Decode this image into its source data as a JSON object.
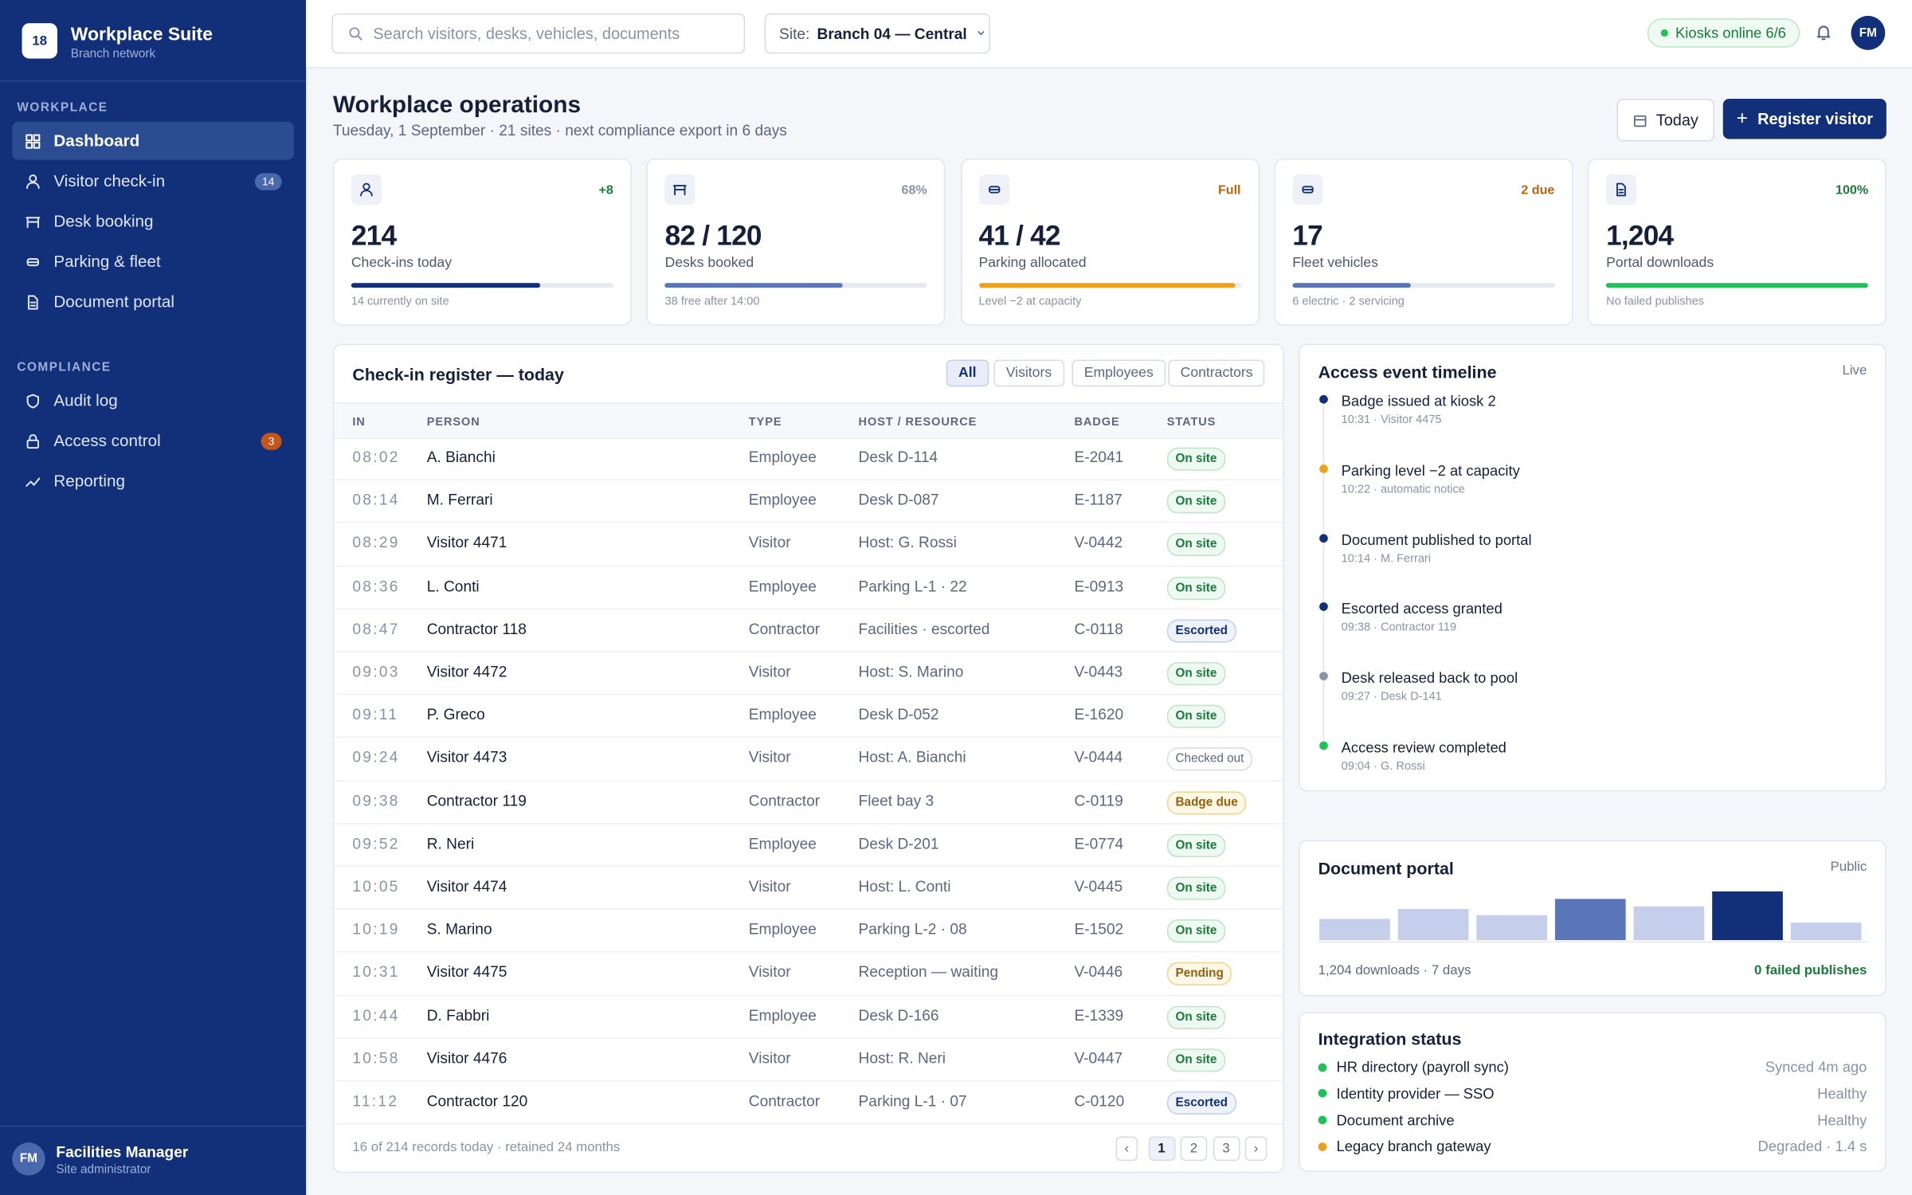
{
  "brand": {
    "logo": "18",
    "name": "Workplace Suite",
    "subtitle": "Branch network"
  },
  "nav": [
    {
      "section": "WORKPLACE",
      "items": [
        {
          "label": "Dashboard",
          "active": true
        },
        {
          "label": "Visitor check-in",
          "badge": 14,
          "badge_color": "blue"
        },
        {
          "label": "Desk booking"
        },
        {
          "label": "Parking & fleet"
        },
        {
          "label": "Document portal"
        }
      ]
    },
    {
      "section": "COMPLIANCE",
      "items": [
        {
          "label": "Audit log"
        },
        {
          "label": "Access control",
          "badge": 3,
          "badge_color": "orange"
        },
        {
          "label": "Reporting"
        }
      ]
    }
  ],
  "user": {
    "initials": "FM",
    "name": "Facilities Manager",
    "role": "Site administrator"
  },
  "topbar": {
    "search_placeholder": "Search visitors, desks, vehicles, documents",
    "site_label": "Site:",
    "site_value": "Branch 04 — Central",
    "kiosks": "Kiosks online 6/6",
    "avatar": "FM"
  },
  "header": {
    "title": "Workplace operations",
    "subtitle": "Tuesday, 1 September · 21 sites · next compliance export in 6 days",
    "button_today": "Today",
    "button_register": "Register visitor"
  },
  "kpis": [
    {
      "value": "214",
      "label": "Check-ins today",
      "badge": "+8",
      "badge_color": "#1c7a3c",
      "progress": 72,
      "bar_color": "#12307a",
      "note": "14 currently on site"
    },
    {
      "value": "82 / 120",
      "label": "Desks booked",
      "badge": "68%",
      "badge_color": "#8a93a6",
      "progress": 68,
      "bar_color": "#5b76b8",
      "note": "38 free after 14:00"
    },
    {
      "value": "41 / 42",
      "label": "Parking allocated",
      "badge": "Full",
      "badge_color": "#b8650a",
      "progress": 98,
      "bar_color": "#f0a11c",
      "note": "Level −2 at capacity"
    },
    {
      "value": "17",
      "label": "Fleet vehicles",
      "badge": "2 due",
      "badge_color": "#b8650a",
      "progress": 45,
      "bar_color": "#5b76b8",
      "note": "6 electric · 2 servicing"
    },
    {
      "value": "1,204",
      "label": "Portal downloads",
      "badge": "100%",
      "badge_color": "#1c7a3c",
      "progress": 100,
      "bar_color": "#22c05a",
      "note": "No failed publishes"
    }
  ],
  "register": {
    "title": "Check-in register — today",
    "filters": [
      "All",
      "Visitors",
      "Employees",
      "Contractors"
    ],
    "active_filter": 0,
    "columns": [
      "IN",
      "PERSON",
      "TYPE",
      "HOST / RESOURCE",
      "BADGE",
      "STATUS"
    ],
    "rows": [
      {
        "in": "08:02",
        "person": "A. Bianchi",
        "type": "Employee",
        "host": "Desk D-114",
        "badge": "E-2041",
        "status": "On site",
        "tone": "green"
      },
      {
        "in": "08:14",
        "person": "M. Ferrari",
        "type": "Employee",
        "host": "Desk D-087",
        "badge": "E-1187",
        "status": "On site",
        "tone": "green"
      },
      {
        "in": "08:29",
        "person": "Visitor 4471",
        "type": "Visitor",
        "host": "Host: G. Rossi",
        "badge": "V-0442",
        "status": "On site",
        "tone": "green"
      },
      {
        "in": "08:36",
        "person": "L. Conti",
        "type": "Employee",
        "host": "Parking L-1 · 22",
        "badge": "E-0913",
        "status": "On site",
        "tone": "green"
      },
      {
        "in": "08:47",
        "person": "Contractor 118",
        "type": "Contractor",
        "host": "Facilities · escorted",
        "badge": "C-0118",
        "status": "Escorted",
        "tone": "blue"
      },
      {
        "in": "09:03",
        "person": "Visitor 4472",
        "type": "Visitor",
        "host": "Host: S. Marino",
        "badge": "V-0443",
        "status": "On site",
        "tone": "green"
      },
      {
        "in": "09:11",
        "person": "P. Greco",
        "type": "Employee",
        "host": "Desk D-052",
        "badge": "E-1620",
        "status": "On site",
        "tone": "green"
      },
      {
        "in": "09:24",
        "person": "Visitor 4473",
        "type": "Visitor",
        "host": "Host: A. Bianchi",
        "badge": "V-0444",
        "status": "Checked out",
        "tone": "gray"
      },
      {
        "in": "09:38",
        "person": "Contractor 119",
        "type": "Contractor",
        "host": "Fleet bay 3",
        "badge": "C-0119",
        "status": "Badge due",
        "tone": "amber"
      },
      {
        "in": "09:52",
        "person": "R. Neri",
        "type": "Employee",
        "host": "Desk D-201",
        "badge": "E-0774",
        "status": "On site",
        "tone": "green"
      },
      {
        "in": "10:05",
        "person": "Visitor 4474",
        "type": "Visitor",
        "host": "Host: L. Conti",
        "badge": "V-0445",
        "status": "On site",
        "tone": "green"
      },
      {
        "in": "10:19",
        "person": "S. Marino",
        "type": "Employee",
        "host": "Parking L-2 · 08",
        "badge": "E-1502",
        "status": "On site",
        "tone": "green"
      },
      {
        "in": "10:31",
        "person": "Visitor 4475",
        "type": "Visitor",
        "host": "Reception — waiting",
        "badge": "V-0446",
        "status": "Pending",
        "tone": "amber"
      },
      {
        "in": "10:44",
        "person": "D. Fabbri",
        "type": "Employee",
        "host": "Desk D-166",
        "badge": "E-1339",
        "status": "On site",
        "tone": "green"
      },
      {
        "in": "10:58",
        "person": "Visitor 4476",
        "type": "Visitor",
        "host": "Host: R. Neri",
        "badge": "V-0447",
        "status": "On site",
        "tone": "green"
      },
      {
        "in": "11:12",
        "person": "Contractor 120",
        "type": "Contractor",
        "host": "Parking L-1 · 07",
        "badge": "C-0120",
        "status": "Escorted",
        "tone": "blue"
      }
    ],
    "footer": "16 of 214 records today · retained 24 months",
    "pages": [
      "‹",
      "1",
      "2",
      "3",
      "›"
    ],
    "active_page": 1
  },
  "timeline": {
    "title": "Access event timeline",
    "tag": "Live",
    "events": [
      {
        "title": "Badge issued at kiosk 2",
        "meta": "10:31 · Visitor 4475",
        "color": "#12307a"
      },
      {
        "title": "Parking level −2 at capacity",
        "meta": "10:22 · automatic notice",
        "color": "#f0a11c"
      },
      {
        "title": "Document published to portal",
        "meta": "10:14 · M. Ferrari",
        "color": "#12307a"
      },
      {
        "title": "Escorted access granted",
        "meta": "09:38 · Contractor 119",
        "color": "#12307a"
      },
      {
        "title": "Desk released back to pool",
        "meta": "09:27 · Desk D-141",
        "color": "#8a93a6"
      },
      {
        "title": "Access review completed",
        "meta": "09:04 · G. Rossi",
        "color": "#22c05a"
      }
    ]
  },
  "document_portal": {
    "title": "Document portal",
    "tag": "Public",
    "chart_data": {
      "type": "bar",
      "values": [
        17,
        25,
        20,
        33,
        27,
        39,
        14
      ],
      "colors": [
        "#c5cfeb",
        "#c5cfeb",
        "#c5cfeb",
        "#5b76b8",
        "#c5cfeb",
        "#12307a",
        "#c5cfeb"
      ],
      "ylim": [
        0,
        40
      ]
    },
    "footer_left": "1,204 downloads · 7 days",
    "footer_right": "0 failed publishes"
  },
  "integrations": {
    "title": "Integration status",
    "items": [
      {
        "name": "HR directory (payroll sync)",
        "status": "Synced 4m ago",
        "color": "#22c05a"
      },
      {
        "name": "Identity provider — SSO",
        "status": "Healthy",
        "color": "#22c05a"
      },
      {
        "name": "Document archive",
        "status": "Healthy",
        "color": "#22c05a"
      },
      {
        "name": "Legacy branch gateway",
        "status": "Degraded · 1.4 s",
        "color": "#f0a11c"
      }
    ]
  }
}
